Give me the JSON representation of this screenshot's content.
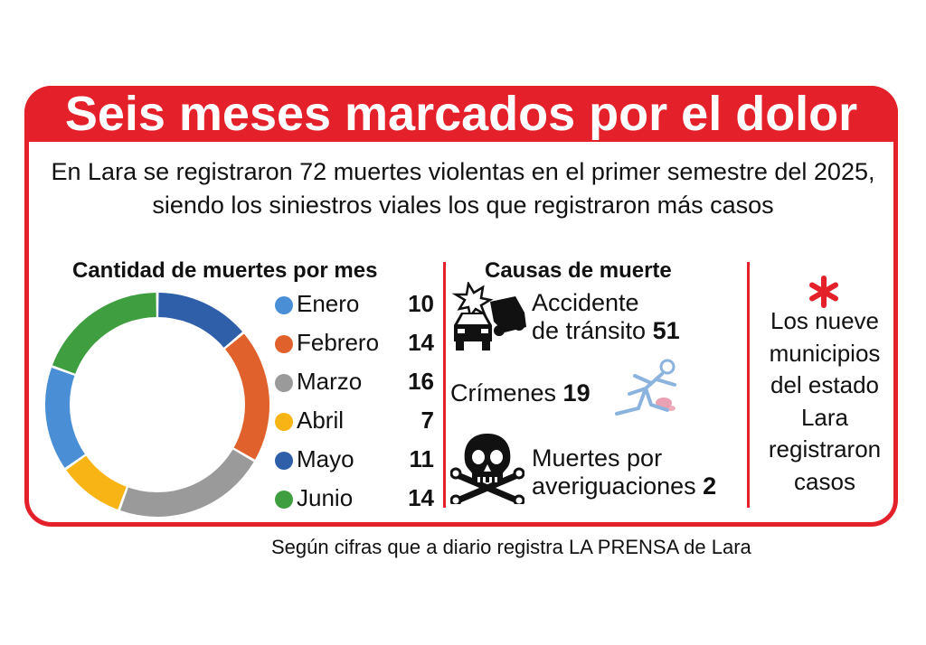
{
  "title": "Seis meses marcados por el dolor",
  "intro": "En Lara se registraron 72 muertes violentas en el primer semestre del 2025, siendo los siniestros viales los que registraron más casos",
  "left_title": "Cantidad de muertes por mes",
  "chart_data": {
    "type": "pie",
    "title": "Cantidad de muertes por mes",
    "categories": [
      "Enero",
      "Febrero",
      "Marzo",
      "Abril",
      "Mayo",
      "Junio"
    ],
    "values": [
      10,
      14,
      16,
      7,
      11,
      14
    ],
    "colors": [
      "#2e5fa8",
      "#e0612b",
      "#9a9a9a",
      "#f7b414",
      "#4a8fd6",
      "#3f9e3f"
    ],
    "legend_colors": [
      "#4a8fd6",
      "#e0612b",
      "#9a9a9a",
      "#f7b414",
      "#2e5fa8",
      "#3f9e3f"
    ],
    "legend": "right",
    "donut": true
  },
  "causes": {
    "title": "Causas de muerte",
    "accident": {
      "line1": "Accidente",
      "line2": "de tránsito",
      "value": "51",
      "icon": "car-crash-icon"
    },
    "crimes": {
      "label": "Crímenes",
      "value": "19",
      "icon": "fallen-person-icon"
    },
    "investigations": {
      "line1": "Muertes por",
      "line2": "averiguaciones",
      "value": "2",
      "icon": "skull-crossbones-icon"
    }
  },
  "municipalities": {
    "icon": "asterisk-icon",
    "lines": [
      "Los nueve",
      "municipios",
      "del estado",
      "Lara",
      "registraron",
      "casos"
    ]
  },
  "source": "Según cifras que a diario registra LA PRENSA de Lara",
  "colors": {
    "accent": "#e4202a"
  }
}
